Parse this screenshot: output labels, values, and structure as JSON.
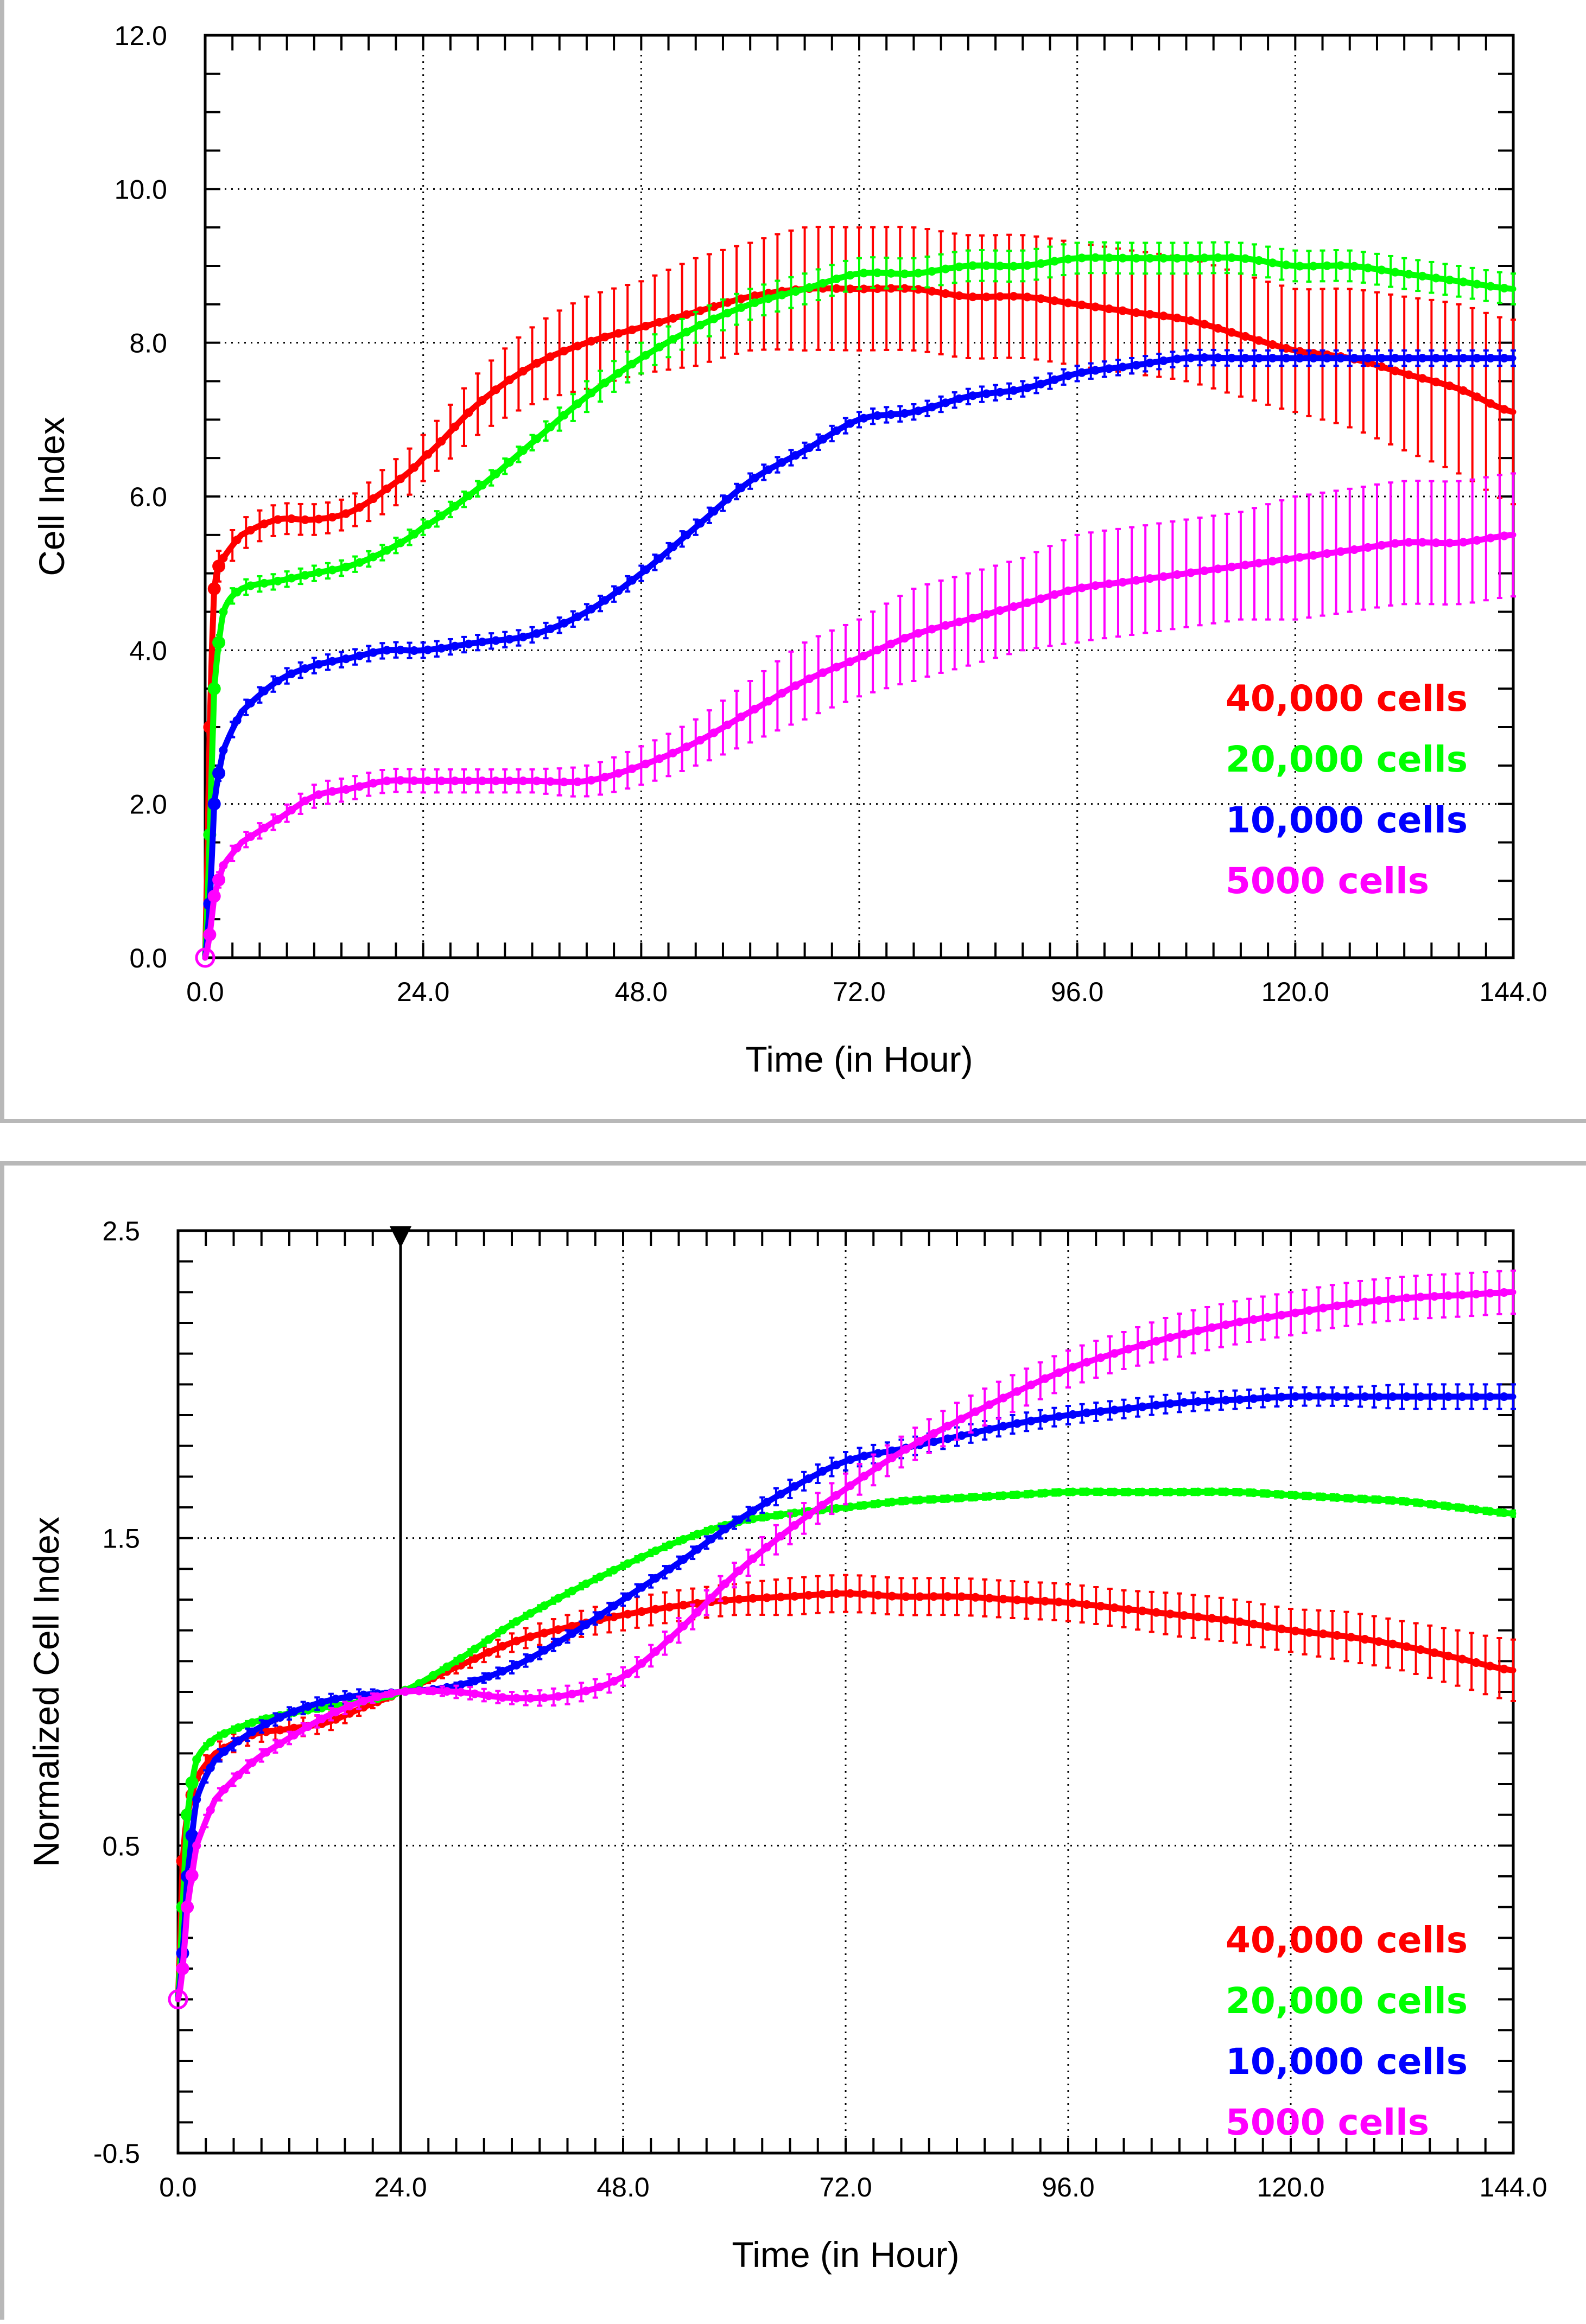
{
  "chart_data": [
    {
      "type": "line",
      "title": "",
      "xlabel": "Time (in Hour)",
      "ylabel": "Cell Index",
      "xlim": [
        0,
        144
      ],
      "ylim": [
        0,
        12
      ],
      "xticks": [
        "0.0",
        "24.0",
        "48.0",
        "72.0",
        "96.0",
        "120.0",
        "144.0"
      ],
      "yticks": [
        "0.0",
        "2.0",
        "4.0",
        "6.0",
        "8.0",
        "10.0",
        "12.0"
      ],
      "grid": true,
      "legend_position": "bottom-right",
      "series": [
        {
          "name": "40,000 cells",
          "color": "#ff0000",
          "x": [
            0,
            0.5,
            1,
            2,
            4,
            8,
            12,
            16,
            20,
            24,
            30,
            36,
            42,
            48,
            54,
            60,
            66,
            72,
            78,
            84,
            90,
            96,
            102,
            108,
            114,
            120,
            126,
            132,
            138,
            144
          ],
          "y": [
            0,
            3.0,
            4.8,
            5.2,
            5.5,
            5.7,
            5.7,
            5.8,
            6.1,
            6.5,
            7.2,
            7.7,
            8.0,
            8.2,
            8.4,
            8.6,
            8.7,
            8.7,
            8.7,
            8.6,
            8.6,
            8.5,
            8.4,
            8.3,
            8.1,
            7.9,
            7.8,
            7.6,
            7.4,
            7.1
          ],
          "err": [
            0,
            0.1,
            0.2,
            0.2,
            0.2,
            0.2,
            0.2,
            0.2,
            0.3,
            0.3,
            0.4,
            0.5,
            0.6,
            0.6,
            0.7,
            0.7,
            0.8,
            0.8,
            0.8,
            0.8,
            0.8,
            0.8,
            0.8,
            0.8,
            0.8,
            0.8,
            0.9,
            1.0,
            1.1,
            1.2
          ]
        },
        {
          "name": "20,000 cells",
          "color": "#00ff00",
          "x": [
            0,
            0.5,
            1,
            2,
            4,
            8,
            12,
            16,
            20,
            24,
            30,
            36,
            42,
            48,
            54,
            60,
            66,
            72,
            78,
            84,
            90,
            96,
            102,
            108,
            114,
            120,
            126,
            132,
            138,
            144
          ],
          "y": [
            0,
            1.6,
            3.5,
            4.5,
            4.8,
            4.9,
            5.0,
            5.1,
            5.3,
            5.6,
            6.1,
            6.7,
            7.3,
            7.8,
            8.2,
            8.5,
            8.7,
            8.9,
            8.9,
            9.0,
            9.0,
            9.1,
            9.1,
            9.1,
            9.1,
            9.0,
            9.0,
            8.9,
            8.8,
            8.7
          ],
          "err": [
            0,
            0.05,
            0.1,
            0.1,
            0.1,
            0.1,
            0.1,
            0.1,
            0.1,
            0.1,
            0.1,
            0.1,
            0.2,
            0.2,
            0.2,
            0.2,
            0.2,
            0.2,
            0.2,
            0.2,
            0.2,
            0.2,
            0.2,
            0.2,
            0.2,
            0.2,
            0.2,
            0.2,
            0.2,
            0.2
          ]
        },
        {
          "name": "10,000 cells",
          "color": "#0000ff",
          "x": [
            0,
            0.5,
            1,
            2,
            4,
            8,
            12,
            16,
            20,
            24,
            30,
            36,
            42,
            48,
            54,
            60,
            66,
            72,
            78,
            84,
            90,
            96,
            102,
            108,
            114,
            120,
            126,
            132,
            138,
            144
          ],
          "y": [
            0,
            0.7,
            2.0,
            2.7,
            3.2,
            3.6,
            3.8,
            3.9,
            4.0,
            4.0,
            4.1,
            4.2,
            4.5,
            5.0,
            5.6,
            6.2,
            6.6,
            7.0,
            7.1,
            7.3,
            7.4,
            7.6,
            7.7,
            7.8,
            7.8,
            7.8,
            7.8,
            7.8,
            7.8,
            7.8
          ],
          "err": [
            0,
            0.05,
            0.1,
            0.1,
            0.1,
            0.1,
            0.1,
            0.1,
            0.1,
            0.1,
            0.1,
            0.1,
            0.1,
            0.1,
            0.1,
            0.1,
            0.1,
            0.1,
            0.1,
            0.1,
            0.1,
            0.1,
            0.1,
            0.1,
            0.1,
            0.1,
            0.1,
            0.1,
            0.1,
            0.1
          ]
        },
        {
          "name": "5000 cells",
          "color": "#ff00ff",
          "x": [
            0,
            0.5,
            1,
            2,
            4,
            8,
            12,
            16,
            20,
            24,
            30,
            36,
            42,
            48,
            54,
            60,
            66,
            72,
            78,
            84,
            90,
            96,
            102,
            108,
            114,
            120,
            126,
            132,
            138,
            144
          ],
          "y": [
            0,
            0.3,
            0.8,
            1.2,
            1.5,
            1.8,
            2.1,
            2.2,
            2.3,
            2.3,
            2.3,
            2.3,
            2.3,
            2.5,
            2.8,
            3.2,
            3.6,
            3.9,
            4.2,
            4.4,
            4.6,
            4.8,
            4.9,
            5.0,
            5.1,
            5.2,
            5.3,
            5.4,
            5.4,
            5.5
          ],
          "err": [
            0,
            0.05,
            0.1,
            0.1,
            0.1,
            0.1,
            0.15,
            0.15,
            0.15,
            0.15,
            0.15,
            0.15,
            0.2,
            0.25,
            0.3,
            0.4,
            0.5,
            0.5,
            0.6,
            0.6,
            0.6,
            0.7,
            0.7,
            0.7,
            0.7,
            0.8,
            0.8,
            0.8,
            0.8,
            0.8
          ]
        }
      ]
    },
    {
      "type": "line",
      "title": "",
      "xlabel": "Time (in Hour)",
      "ylabel": "Normalized Cell Index",
      "xlim": [
        0,
        144
      ],
      "ylim": [
        -0.5,
        2.5
      ],
      "xticks": [
        "0.0",
        "24.0",
        "48.0",
        "72.0",
        "96.0",
        "120.0",
        "144.0"
      ],
      "yticks": [
        "-0.5",
        "0.5",
        "1.5",
        "2.5"
      ],
      "grid": true,
      "normalization_time": 24,
      "legend_position": "bottom-right",
      "series": [
        {
          "name": "40,000 cells",
          "color": "#ff0000",
          "x": [
            0,
            0.5,
            1,
            2,
            4,
            8,
            12,
            16,
            20,
            24,
            30,
            36,
            42,
            48,
            54,
            60,
            66,
            72,
            78,
            84,
            90,
            96,
            102,
            108,
            114,
            120,
            126,
            132,
            138,
            144
          ],
          "y": [
            0,
            0.45,
            0.6,
            0.72,
            0.8,
            0.86,
            0.88,
            0.9,
            0.95,
            1.0,
            1.08,
            1.16,
            1.21,
            1.25,
            1.28,
            1.3,
            1.31,
            1.32,
            1.31,
            1.31,
            1.3,
            1.29,
            1.27,
            1.25,
            1.23,
            1.2,
            1.18,
            1.15,
            1.11,
            1.07
          ],
          "err": [
            0,
            0.02,
            0.03,
            0.03,
            0.03,
            0.03,
            0.03,
            0.03,
            0.02,
            0,
            0.02,
            0.03,
            0.04,
            0.05,
            0.05,
            0.05,
            0.06,
            0.06,
            0.06,
            0.06,
            0.06,
            0.06,
            0.06,
            0.07,
            0.07,
            0.07,
            0.08,
            0.08,
            0.09,
            0.1
          ]
        },
        {
          "name": "20,000 cells",
          "color": "#00ff00",
          "x": [
            0,
            0.5,
            1,
            2,
            4,
            8,
            12,
            16,
            20,
            24,
            30,
            36,
            42,
            48,
            54,
            60,
            66,
            72,
            78,
            84,
            90,
            96,
            102,
            108,
            114,
            120,
            126,
            132,
            138,
            144
          ],
          "y": [
            0,
            0.3,
            0.6,
            0.78,
            0.85,
            0.9,
            0.93,
            0.95,
            0.97,
            1.0,
            1.1,
            1.22,
            1.32,
            1.41,
            1.49,
            1.55,
            1.58,
            1.6,
            1.62,
            1.63,
            1.64,
            1.65,
            1.65,
            1.65,
            1.65,
            1.64,
            1.63,
            1.62,
            1.6,
            1.58
          ],
          "err": [
            0,
            0.01,
            0.01,
            0.01,
            0.01,
            0.01,
            0.01,
            0.01,
            0.01,
            0,
            0.01,
            0.01,
            0.01,
            0.01,
            0.01,
            0.01,
            0.01,
            0.01,
            0.01,
            0.01,
            0.01,
            0.01,
            0.01,
            0.01,
            0.01,
            0.01,
            0.01,
            0.01,
            0.01,
            0.01
          ]
        },
        {
          "name": "10,000 cells",
          "color": "#0000ff",
          "x": [
            0,
            0.5,
            1,
            2,
            4,
            8,
            12,
            16,
            20,
            24,
            30,
            36,
            42,
            48,
            54,
            60,
            66,
            72,
            78,
            84,
            90,
            96,
            102,
            108,
            114,
            120,
            126,
            132,
            138,
            144
          ],
          "y": [
            0,
            0.15,
            0.4,
            0.65,
            0.78,
            0.87,
            0.93,
            0.97,
            0.99,
            1.0,
            1.02,
            1.08,
            1.18,
            1.3,
            1.42,
            1.55,
            1.66,
            1.75,
            1.79,
            1.83,
            1.87,
            1.9,
            1.92,
            1.94,
            1.95,
            1.96,
            1.96,
            1.96,
            1.96,
            1.96
          ],
          "err": [
            0,
            0.01,
            0.02,
            0.02,
            0.02,
            0.02,
            0.02,
            0.02,
            0.02,
            0,
            0.01,
            0.02,
            0.02,
            0.02,
            0.02,
            0.02,
            0.03,
            0.03,
            0.03,
            0.03,
            0.03,
            0.03,
            0.03,
            0.03,
            0.03,
            0.03,
            0.03,
            0.04,
            0.04,
            0.04
          ]
        },
        {
          "name": "5000 cells",
          "color": "#ff00ff",
          "x": [
            0,
            0.5,
            1,
            2,
            4,
            8,
            12,
            16,
            20,
            24,
            30,
            36,
            42,
            48,
            54,
            60,
            66,
            72,
            78,
            84,
            90,
            96,
            102,
            108,
            114,
            120,
            126,
            132,
            138,
            144
          ],
          "y": [
            0,
            0.1,
            0.3,
            0.5,
            0.65,
            0.77,
            0.85,
            0.92,
            0.97,
            1.0,
            1.0,
            0.98,
            0.99,
            1.05,
            1.2,
            1.38,
            1.53,
            1.66,
            1.78,
            1.88,
            1.97,
            2.05,
            2.11,
            2.16,
            2.2,
            2.23,
            2.26,
            2.28,
            2.29,
            2.3
          ],
          "err": [
            0,
            0.01,
            0.02,
            0.02,
            0.02,
            0.02,
            0.02,
            0.02,
            0.02,
            0,
            0.02,
            0.02,
            0.03,
            0.03,
            0.04,
            0.04,
            0.05,
            0.05,
            0.05,
            0.06,
            0.06,
            0.06,
            0.06,
            0.07,
            0.07,
            0.07,
            0.07,
            0.07,
            0.07,
            0.07
          ]
        }
      ]
    }
  ]
}
